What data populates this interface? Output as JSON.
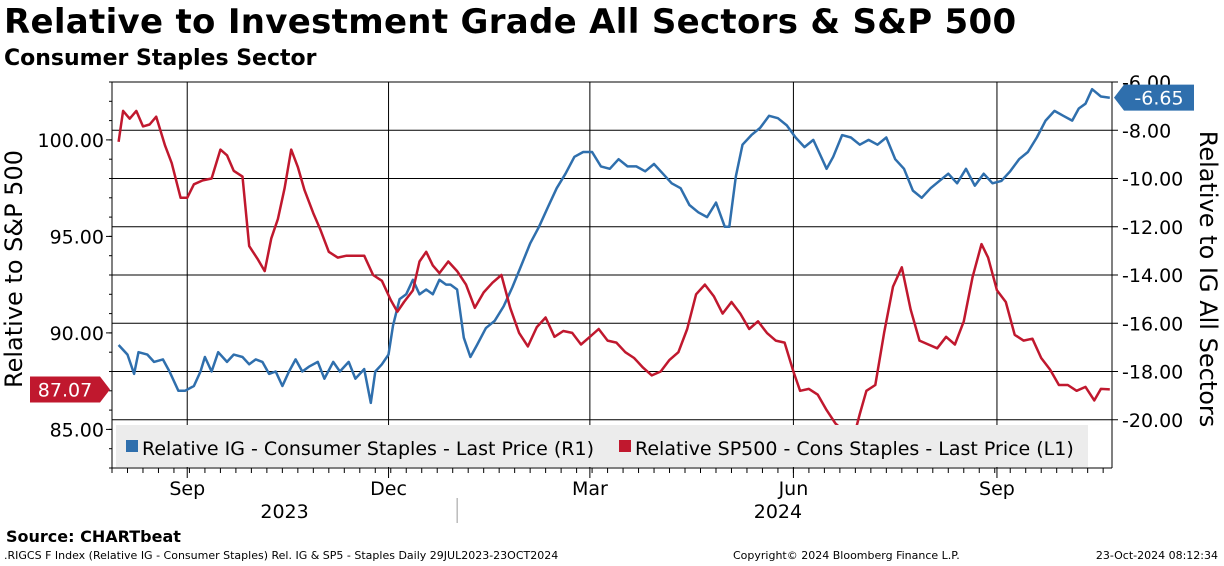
{
  "chart_data": {
    "type": "line",
    "title": "Relative to Investment Grade All Sectors & S&P 500",
    "subtitle": "Consumer Staples Sector",
    "left_axis": {
      "label": "Relative to S&P 500",
      "range": [
        83.0,
        103.0
      ],
      "ticks": [
        "100.00",
        "95.00",
        "90.00",
        "85.00"
      ],
      "tick_values": [
        100,
        95,
        90,
        85
      ]
    },
    "right_axis": {
      "label": "Relative to IG All Sectors",
      "range": [
        -22.0,
        -6.0
      ],
      "ticks": [
        "-6.00",
        "-8.00",
        "-10.00",
        "-12.00",
        "-14.00",
        "-16.00",
        "-18.00",
        "-20.00"
      ],
      "tick_values": [
        -6,
        -8,
        -10,
        -12,
        -14,
        -16,
        -18,
        -20
      ]
    },
    "x_axis": {
      "range": [
        "2023-07-29",
        "2024-10-23"
      ],
      "month_labels": [
        {
          "label": "Sep",
          "date": "2023-09-01"
        },
        {
          "label": "Dec",
          "date": "2023-12-01"
        },
        {
          "label": "Mar",
          "date": "2024-03-01"
        },
        {
          "label": "Jun",
          "date": "2024-06-01"
        },
        {
          "label": "Sep",
          "date": "2024-09-01"
        }
      ],
      "year_labels": [
        {
          "label": "2023",
          "date": "2023-10-15"
        },
        {
          "label": "2024",
          "date": "2024-05-25"
        }
      ],
      "year_boundary": "2024-01-01"
    },
    "grid": true,
    "legend_position": "bottom-inside",
    "series": [
      {
        "name": "Relative IG - Consumer Staples - Last Price (R1)",
        "axis": "right",
        "color": "#2f6fad",
        "last_value_label": "-6.65",
        "points": [
          [
            "2023-08-01",
            -16.9
          ],
          [
            "2023-08-05",
            -17.3
          ],
          [
            "2023-08-08",
            -18.1
          ],
          [
            "2023-08-10",
            -17.2
          ],
          [
            "2023-08-14",
            -17.3
          ],
          [
            "2023-08-17",
            -17.6
          ],
          [
            "2023-08-21",
            -17.5
          ],
          [
            "2023-08-24",
            -18.0
          ],
          [
            "2023-08-28",
            -18.8
          ],
          [
            "2023-08-31",
            -18.8
          ],
          [
            "2023-09-04",
            -18.6
          ],
          [
            "2023-09-07",
            -18.0
          ],
          [
            "2023-09-09",
            -17.4
          ],
          [
            "2023-09-12",
            -18.0
          ],
          [
            "2023-09-15",
            -17.2
          ],
          [
            "2023-09-19",
            -17.6
          ],
          [
            "2023-09-22",
            -17.3
          ],
          [
            "2023-09-26",
            -17.4
          ],
          [
            "2023-09-29",
            -17.7
          ],
          [
            "2023-10-02",
            -17.5
          ],
          [
            "2023-10-05",
            -17.6
          ],
          [
            "2023-10-08",
            -18.1
          ],
          [
            "2023-10-11",
            -18.0
          ],
          [
            "2023-10-14",
            -18.6
          ],
          [
            "2023-10-17",
            -18.0
          ],
          [
            "2023-10-20",
            -17.5
          ],
          [
            "2023-10-23",
            -18.0
          ],
          [
            "2023-10-26",
            -17.8
          ],
          [
            "2023-10-30",
            -17.6
          ],
          [
            "2023-11-02",
            -18.3
          ],
          [
            "2023-11-06",
            -17.6
          ],
          [
            "2023-11-09",
            -18.0
          ],
          [
            "2023-11-13",
            -17.6
          ],
          [
            "2023-11-16",
            -18.3
          ],
          [
            "2023-11-20",
            -17.9
          ],
          [
            "2023-11-23",
            -19.3
          ],
          [
            "2023-11-25",
            -18.0
          ],
          [
            "2023-11-28",
            -17.7
          ],
          [
            "2023-12-01",
            -17.3
          ],
          [
            "2023-12-03",
            -16.1
          ],
          [
            "2023-12-06",
            -15.0
          ],
          [
            "2023-12-09",
            -14.8
          ],
          [
            "2023-12-12",
            -14.2
          ],
          [
            "2023-12-15",
            -14.8
          ],
          [
            "2023-12-18",
            -14.6
          ],
          [
            "2023-12-21",
            -14.8
          ],
          [
            "2023-12-24",
            -14.2
          ],
          [
            "2023-12-27",
            -14.4
          ],
          [
            "2023-12-29",
            -14.4
          ],
          [
            "2024-01-01",
            -14.6
          ],
          [
            "2024-01-04",
            -16.6
          ],
          [
            "2024-01-07",
            -17.4
          ],
          [
            "2024-01-10",
            -16.9
          ],
          [
            "2024-01-14",
            -16.2
          ],
          [
            "2024-01-18",
            -15.9
          ],
          [
            "2024-01-22",
            -15.3
          ],
          [
            "2024-01-26",
            -14.5
          ],
          [
            "2024-01-30",
            -13.6
          ],
          [
            "2024-02-03",
            -12.7
          ],
          [
            "2024-02-07",
            -12.0
          ],
          [
            "2024-02-11",
            -11.2
          ],
          [
            "2024-02-15",
            -10.4
          ],
          [
            "2024-02-19",
            -9.8
          ],
          [
            "2024-02-23",
            -9.1
          ],
          [
            "2024-02-27",
            -8.9
          ],
          [
            "2024-03-02",
            -8.9
          ],
          [
            "2024-03-06",
            -9.5
          ],
          [
            "2024-03-10",
            -9.6
          ],
          [
            "2024-03-14",
            -9.2
          ],
          [
            "2024-03-18",
            -9.5
          ],
          [
            "2024-03-22",
            -9.5
          ],
          [
            "2024-03-26",
            -9.7
          ],
          [
            "2024-03-30",
            -9.4
          ],
          [
            "2024-04-03",
            -9.8
          ],
          [
            "2024-04-07",
            -10.2
          ],
          [
            "2024-04-11",
            -10.4
          ],
          [
            "2024-04-15",
            -11.1
          ],
          [
            "2024-04-19",
            -11.4
          ],
          [
            "2024-04-23",
            -11.6
          ],
          [
            "2024-04-27",
            -11.0
          ],
          [
            "2024-05-01",
            -12.0
          ],
          [
            "2024-05-03",
            -12.0
          ],
          [
            "2024-05-06",
            -9.9
          ],
          [
            "2024-05-09",
            -8.6
          ],
          [
            "2024-05-13",
            -8.2
          ],
          [
            "2024-05-17",
            -7.9
          ],
          [
            "2024-05-21",
            -7.4
          ],
          [
            "2024-05-25",
            -7.5
          ],
          [
            "2024-05-29",
            -7.8
          ],
          [
            "2024-06-02",
            -8.3
          ],
          [
            "2024-06-06",
            -8.7
          ],
          [
            "2024-06-10",
            -8.4
          ],
          [
            "2024-06-13",
            -9.0
          ],
          [
            "2024-06-16",
            -9.6
          ],
          [
            "2024-06-19",
            -9.1
          ],
          [
            "2024-06-23",
            -8.2
          ],
          [
            "2024-06-27",
            -8.3
          ],
          [
            "2024-07-01",
            -8.6
          ],
          [
            "2024-07-05",
            -8.4
          ],
          [
            "2024-07-09",
            -8.6
          ],
          [
            "2024-07-13",
            -8.3
          ],
          [
            "2024-07-17",
            -9.2
          ],
          [
            "2024-07-21",
            -9.6
          ],
          [
            "2024-07-25",
            -10.5
          ],
          [
            "2024-07-29",
            -10.8
          ],
          [
            "2024-08-02",
            -10.4
          ],
          [
            "2024-08-06",
            -10.1
          ],
          [
            "2024-08-10",
            -9.8
          ],
          [
            "2024-08-14",
            -10.2
          ],
          [
            "2024-08-18",
            -9.6
          ],
          [
            "2024-08-22",
            -10.3
          ],
          [
            "2024-08-26",
            -9.8
          ],
          [
            "2024-08-30",
            -10.2
          ],
          [
            "2024-09-03",
            -10.1
          ],
          [
            "2024-09-07",
            -9.7
          ],
          [
            "2024-09-11",
            -9.2
          ],
          [
            "2024-09-15",
            -8.9
          ],
          [
            "2024-09-19",
            -8.3
          ],
          [
            "2024-09-23",
            -7.6
          ],
          [
            "2024-09-27",
            -7.2
          ],
          [
            "2024-10-01",
            -7.4
          ],
          [
            "2024-10-05",
            -7.6
          ],
          [
            "2024-10-08",
            -7.1
          ],
          [
            "2024-10-11",
            -6.9
          ],
          [
            "2024-10-14",
            -6.3
          ],
          [
            "2024-10-18",
            -6.6
          ],
          [
            "2024-10-22",
            -6.65
          ]
        ]
      },
      {
        "name": "Relative SP500 - Cons Staples - Last Price (L1)",
        "axis": "left",
        "color": "#c0182e",
        "last_value_label": "87.07",
        "points": [
          [
            "2023-08-01",
            99.9
          ],
          [
            "2023-08-03",
            101.5
          ],
          [
            "2023-08-06",
            101.1
          ],
          [
            "2023-08-09",
            101.5
          ],
          [
            "2023-08-12",
            100.7
          ],
          [
            "2023-08-15",
            100.8
          ],
          [
            "2023-08-18",
            101.2
          ],
          [
            "2023-08-22",
            99.7
          ],
          [
            "2023-08-25",
            98.8
          ],
          [
            "2023-08-29",
            97.0
          ],
          [
            "2023-09-01",
            97.0
          ],
          [
            "2023-09-04",
            97.7
          ],
          [
            "2023-09-08",
            97.9
          ],
          [
            "2023-09-12",
            98.0
          ],
          [
            "2023-09-16",
            99.5
          ],
          [
            "2023-09-19",
            99.2
          ],
          [
            "2023-09-22",
            98.4
          ],
          [
            "2023-09-26",
            98.1
          ],
          [
            "2023-09-29",
            94.5
          ],
          [
            "2023-10-03",
            93.8
          ],
          [
            "2023-10-06",
            93.2
          ],
          [
            "2023-10-09",
            94.9
          ],
          [
            "2023-10-12",
            95.9
          ],
          [
            "2023-10-15",
            97.5
          ],
          [
            "2023-10-18",
            99.5
          ],
          [
            "2023-10-21",
            98.6
          ],
          [
            "2023-10-24",
            97.4
          ],
          [
            "2023-10-28",
            96.2
          ],
          [
            "2023-10-31",
            95.4
          ],
          [
            "2023-11-04",
            94.2
          ],
          [
            "2023-11-08",
            93.9
          ],
          [
            "2023-11-12",
            94.0
          ],
          [
            "2023-11-16",
            94.0
          ],
          [
            "2023-11-20",
            94.0
          ],
          [
            "2023-11-24",
            93.0
          ],
          [
            "2023-11-28",
            92.7
          ],
          [
            "2023-12-02",
            91.7
          ],
          [
            "2023-12-05",
            91.1
          ],
          [
            "2023-12-08",
            91.6
          ],
          [
            "2023-12-12",
            92.2
          ],
          [
            "2023-12-15",
            93.7
          ],
          [
            "2023-12-18",
            94.2
          ],
          [
            "2023-12-21",
            93.5
          ],
          [
            "2023-12-24",
            93.1
          ],
          [
            "2023-12-28",
            93.7
          ],
          [
            "2024-01-01",
            93.2
          ],
          [
            "2024-01-05",
            92.5
          ],
          [
            "2024-01-09",
            91.3
          ],
          [
            "2024-01-13",
            92.1
          ],
          [
            "2024-01-17",
            92.6
          ],
          [
            "2024-01-21",
            93.0
          ],
          [
            "2024-01-25",
            91.3
          ],
          [
            "2024-01-29",
            90.0
          ],
          [
            "2024-02-02",
            89.3
          ],
          [
            "2024-02-06",
            90.3
          ],
          [
            "2024-02-10",
            90.8
          ],
          [
            "2024-02-14",
            89.8
          ],
          [
            "2024-02-18",
            90.1
          ],
          [
            "2024-02-22",
            90.0
          ],
          [
            "2024-02-26",
            89.4
          ],
          [
            "2024-03-01",
            89.8
          ],
          [
            "2024-03-05",
            90.2
          ],
          [
            "2024-03-09",
            89.6
          ],
          [
            "2024-03-13",
            89.5
          ],
          [
            "2024-03-17",
            89.0
          ],
          [
            "2024-03-21",
            88.7
          ],
          [
            "2024-03-25",
            88.2
          ],
          [
            "2024-03-29",
            87.8
          ],
          [
            "2024-04-02",
            88.0
          ],
          [
            "2024-04-06",
            88.6
          ],
          [
            "2024-04-10",
            89.0
          ],
          [
            "2024-04-14",
            90.2
          ],
          [
            "2024-04-18",
            92.0
          ],
          [
            "2024-04-22",
            92.5
          ],
          [
            "2024-04-26",
            91.9
          ],
          [
            "2024-04-30",
            91.0
          ],
          [
            "2024-05-04",
            91.6
          ],
          [
            "2024-05-08",
            91.0
          ],
          [
            "2024-05-12",
            90.2
          ],
          [
            "2024-05-16",
            90.6
          ],
          [
            "2024-05-20",
            90.0
          ],
          [
            "2024-05-24",
            89.6
          ],
          [
            "2024-05-28",
            89.5
          ],
          [
            "2024-06-01",
            88.0
          ],
          [
            "2024-06-04",
            87.0
          ],
          [
            "2024-06-08",
            87.1
          ],
          [
            "2024-06-12",
            86.8
          ],
          [
            "2024-06-16",
            86.0
          ],
          [
            "2024-06-20",
            85.3
          ],
          [
            "2024-06-24",
            84.9
          ],
          [
            "2024-06-28",
            84.5
          ],
          [
            "2024-07-01",
            85.8
          ],
          [
            "2024-07-04",
            87.0
          ],
          [
            "2024-07-08",
            87.3
          ],
          [
            "2024-07-12",
            90.0
          ],
          [
            "2024-07-16",
            92.4
          ],
          [
            "2024-07-20",
            93.4
          ],
          [
            "2024-07-24",
            91.2
          ],
          [
            "2024-07-28",
            89.6
          ],
          [
            "2024-08-01",
            89.4
          ],
          [
            "2024-08-05",
            89.2
          ],
          [
            "2024-08-09",
            89.8
          ],
          [
            "2024-08-13",
            89.4
          ],
          [
            "2024-08-17",
            90.6
          ],
          [
            "2024-08-21",
            92.9
          ],
          [
            "2024-08-25",
            94.6
          ],
          [
            "2024-08-28",
            93.9
          ],
          [
            "2024-09-01",
            92.2
          ],
          [
            "2024-09-05",
            91.6
          ],
          [
            "2024-09-09",
            89.9
          ],
          [
            "2024-09-13",
            89.6
          ],
          [
            "2024-09-17",
            89.7
          ],
          [
            "2024-09-21",
            88.7
          ],
          [
            "2024-09-25",
            88.1
          ],
          [
            "2024-09-29",
            87.3
          ],
          [
            "2024-10-03",
            87.3
          ],
          [
            "2024-10-07",
            87.0
          ],
          [
            "2024-10-11",
            87.2
          ],
          [
            "2024-10-15",
            86.5
          ],
          [
            "2024-10-18",
            87.1
          ],
          [
            "2024-10-22",
            87.07
          ]
        ]
      }
    ]
  },
  "page": {
    "title": "Relative to Investment Grade All Sectors & S&P 500",
    "subtitle": "Consumer Staples Sector",
    "source": "Source:  CHARTbeat",
    "footer_left": ".RIGCS F Index (Relative IG - Consumer Staples) Rel. IG & SP5 - Staples  Daily 29JUL2023-23OCT2024",
    "footer_mid": "Copyright© 2024 Bloomberg Finance L.P.",
    "footer_right": "23-Oct-2024 08:12:34"
  }
}
